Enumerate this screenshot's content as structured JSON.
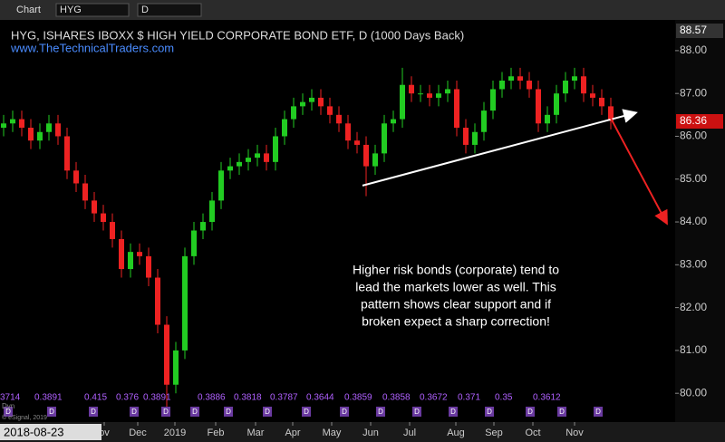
{
  "toolbar": {
    "label": "Chart",
    "symbol": "HYG",
    "interval": "D"
  },
  "chart_data": {
    "type": "candlestick",
    "title": "HYG, ISHARES IBOXX $ HIGH YIELD CORPORATE BOND ETF, D (1000 Days Back)",
    "subtitle": "www.TheTechnicalTraders.com",
    "annotation": [
      "Higher risk bonds (corporate) tend to",
      "lead the markets lower as well. This",
      "pattern shows clear support and if",
      "broken expect a sharp correction!"
    ],
    "top_price": "88.57",
    "last_price": "86.36",
    "cursor_date": "2018-08-23",
    "copyright": "© eSignal, 2019",
    "corner_label": "Dyn",
    "up_color": "#22cc22",
    "down_color": "#ee2222",
    "xlim": [
      -0.4,
      74.1
    ],
    "ylim": [
      79.56,
      88.59
    ],
    "yticks": [
      {
        "value": 80,
        "label": "80.00"
      },
      {
        "value": 81,
        "label": "81.00"
      },
      {
        "value": 82,
        "label": "82.00"
      },
      {
        "value": 83,
        "label": "83.00"
      },
      {
        "value": 84,
        "label": "84.00"
      },
      {
        "value": 85,
        "label": "85.00"
      },
      {
        "value": 86,
        "label": "86.00"
      },
      {
        "value": 87,
        "label": "87.00"
      },
      {
        "value": 88,
        "label": "88.00"
      }
    ],
    "xticks": [
      {
        "value": 11.1,
        "label": "ov"
      },
      {
        "value": 14.8,
        "label": "Dec"
      },
      {
        "value": 18.9,
        "label": "2019"
      },
      {
        "value": 23.4,
        "label": "Feb"
      },
      {
        "value": 27.8,
        "label": "Mar"
      },
      {
        "value": 31.9,
        "label": "Apr"
      },
      {
        "value": 36.2,
        "label": "May"
      },
      {
        "value": 40.5,
        "label": "Jun"
      },
      {
        "value": 44.8,
        "label": "Jul"
      },
      {
        "value": 49.9,
        "label": "Aug"
      },
      {
        "value": 54.1,
        "label": "Sep"
      },
      {
        "value": 58.4,
        "label": "Oct"
      },
      {
        "value": 63,
        "label": "Nov"
      }
    ],
    "open": [
      86.2,
      86.3,
      86.4,
      86.2,
      85.9,
      86.1,
      86.3,
      86.0,
      85.2,
      84.9,
      84.5,
      84.2,
      84.0,
      83.6,
      82.9,
      83.3,
      83.2,
      82.7,
      81.6,
      80.2,
      81.0,
      83.2,
      83.8,
      84.0,
      84.5,
      85.2,
      85.3,
      85.4,
      85.5,
      85.6,
      85.4,
      86.0,
      86.4,
      86.7,
      86.8,
      86.9,
      86.7,
      86.5,
      86.3,
      85.9,
      85.8,
      85.3,
      85.6,
      86.3,
      86.4,
      87.2,
      87.0,
      87.0,
      86.9,
      87.0,
      87.1,
      86.2,
      85.8,
      86.1,
      86.6,
      87.1,
      87.3,
      87.4,
      87.3,
      87.1,
      86.3,
      86.5,
      87.0,
      87.3,
      87.4,
      87.0,
      86.9,
      86.7
    ],
    "high": [
      86.5,
      86.6,
      86.6,
      86.4,
      86.3,
      86.5,
      86.5,
      86.2,
      85.4,
      85.1,
      84.7,
      84.4,
      84.2,
      83.8,
      83.5,
      83.5,
      83.4,
      82.9,
      81.8,
      81.2,
      83.4,
      84.0,
      84.2,
      84.7,
      85.4,
      85.5,
      85.6,
      85.7,
      85.8,
      85.8,
      86.2,
      86.6,
      86.9,
      87.0,
      87.1,
      87.1,
      86.9,
      86.7,
      86.5,
      86.1,
      86.0,
      85.8,
      86.5,
      86.6,
      87.6,
      87.4,
      87.2,
      87.2,
      87.2,
      87.3,
      87.3,
      86.4,
      86.3,
      86.8,
      87.3,
      87.5,
      87.6,
      87.6,
      87.5,
      87.3,
      86.7,
      87.2,
      87.5,
      87.6,
      87.6,
      87.2,
      87.1,
      86.9
    ],
    "low": [
      86.0,
      86.1,
      86.0,
      85.7,
      85.7,
      85.9,
      85.8,
      85.0,
      84.7,
      84.3,
      84.0,
      83.8,
      83.4,
      82.7,
      82.7,
      83.0,
      82.5,
      81.4,
      79.6,
      80.0,
      80.8,
      83.0,
      83.6,
      83.8,
      84.3,
      85.0,
      85.1,
      85.2,
      85.3,
      85.2,
      85.2,
      85.8,
      86.2,
      86.5,
      86.6,
      86.5,
      86.3,
      86.1,
      85.7,
      85.6,
      84.6,
      85.1,
      85.4,
      86.1,
      86.2,
      86.8,
      86.8,
      86.7,
      86.7,
      86.8,
      86.0,
      85.6,
      85.6,
      85.9,
      86.4,
      86.9,
      87.1,
      87.1,
      86.9,
      86.1,
      86.1,
      86.3,
      86.8,
      87.1,
      86.8,
      86.7,
      86.5,
      86.16
    ],
    "close": [
      86.3,
      86.4,
      86.2,
      85.9,
      86.1,
      86.3,
      86.0,
      85.2,
      84.9,
      84.5,
      84.2,
      84.0,
      83.6,
      82.9,
      83.3,
      83.2,
      82.7,
      81.6,
      80.2,
      81.0,
      83.2,
      83.8,
      84.0,
      84.5,
      85.2,
      85.3,
      85.4,
      85.5,
      85.6,
      85.4,
      86.0,
      86.4,
      86.7,
      86.8,
      86.9,
      86.7,
      86.5,
      86.3,
      85.9,
      85.8,
      85.3,
      85.6,
      86.3,
      86.4,
      87.2,
      87.0,
      87.0,
      86.9,
      87.0,
      87.1,
      86.2,
      85.8,
      86.1,
      86.6,
      87.1,
      87.3,
      87.4,
      87.3,
      87.1,
      86.3,
      86.5,
      87.0,
      87.3,
      87.4,
      87.0,
      86.9,
      86.7,
      86.36
    ],
    "trendline": {
      "color": "#ffffff",
      "x": [
        39.6,
        69.6
      ],
      "y": [
        84.85,
        86.54
      ]
    },
    "projection": {
      "color": "#ee2222",
      "x": [
        66.8,
        73.1
      ],
      "y": [
        86.5,
        84.0
      ]
    },
    "cycle_labels": [
      "3714",
      "0.3891",
      "0.415",
      "0.376",
      "0.3891",
      "0.3886",
      "0.3818",
      "0.3787",
      "0.3644",
      "0.3859",
      "0.3858",
      "0.3672",
      "0.371",
      "0.35",
      "0.3612"
    ],
    "cycle_marker": "D"
  }
}
